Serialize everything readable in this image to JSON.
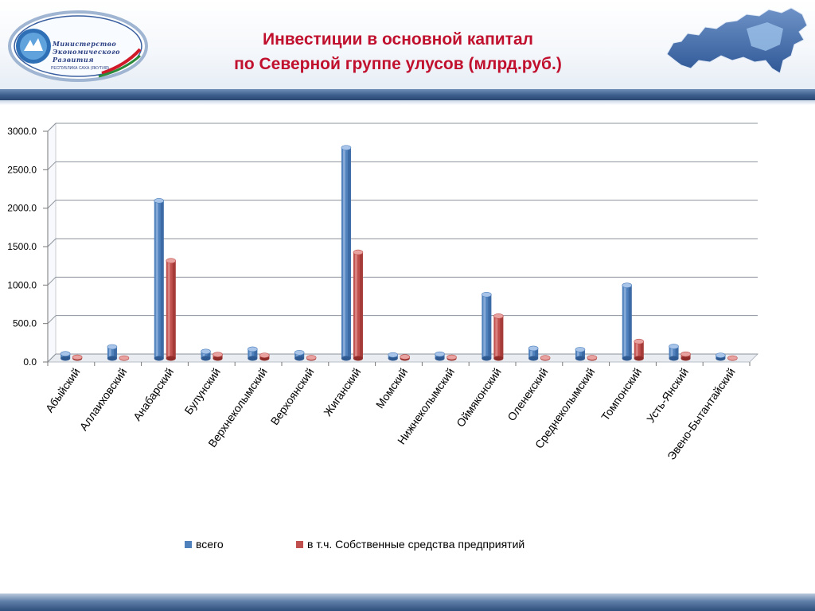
{
  "header": {
    "title_line1": "Инвестиции в основной капитал",
    "title_line2": "по Северной группе улусов (млрд.руб.)",
    "logo_line1": "Министерство",
    "logo_line2": "Экономического",
    "logo_line3": "Развития",
    "logo_sub": "РЕСПУБЛИКА САХА (ЯКУТИЯ)"
  },
  "colors": {
    "series_total": "#4f81bd",
    "series_own": "#c0504d",
    "title": "#c0102e"
  },
  "icons": {
    "logo": "ministry-logo",
    "map": "russia-map-icon"
  },
  "chart_data": {
    "type": "bar",
    "title": "Инвестиции в основной капитал по Северной группе улусов (млрд.руб.)",
    "categories": [
      "Абыйский",
      "Аллаиховский",
      "Анабарский",
      "Булунский",
      "Верхнеколымский",
      "Верхоянский",
      "Жиганский",
      "Момский",
      "Нижнеколымский",
      "Оймяконский",
      "Оленекский",
      "Среднеколымский",
      "Томпонский",
      "Усть-Янский",
      "Эвено-Бытантайский"
    ],
    "series": [
      {
        "name": "всего",
        "values": [
          60,
          150,
          2050,
          90,
          120,
          75,
          2740,
          45,
          55,
          830,
          130,
          115,
          950,
          155,
          40
        ]
      },
      {
        "name": "в т.ч. Собственные средства предприятий",
        "values": [
          15,
          5,
          1270,
          50,
          40,
          10,
          1380,
          20,
          15,
          550,
          8,
          10,
          220,
          55,
          5
        ]
      }
    ],
    "yticks": [
      "0.0",
      "500.0",
      "1000.0",
      "1500.0",
      "2000.0",
      "2500.0",
      "3000.0"
    ],
    "ylim": [
      0,
      3000
    ],
    "grid": true,
    "legend": "bottom"
  }
}
